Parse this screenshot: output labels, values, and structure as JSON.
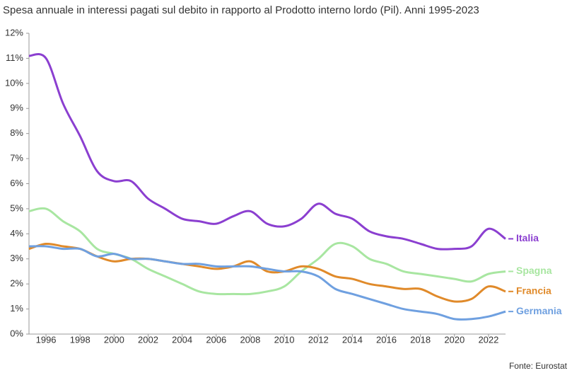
{
  "chart_data": {
    "type": "line",
    "title": "Spesa annuale in interessi pagati sul debito in rapporto al Prodotto interno lordo (Pil). Anni 1995-2023",
    "source": "Fonte: Eurostat",
    "x": [
      1995,
      1996,
      1997,
      1998,
      1999,
      2000,
      2001,
      2002,
      2003,
      2004,
      2005,
      2006,
      2007,
      2008,
      2009,
      2010,
      2011,
      2012,
      2013,
      2014,
      2015,
      2016,
      2017,
      2018,
      2019,
      2020,
      2021,
      2022,
      2023
    ],
    "xlim": [
      1995,
      2023
    ],
    "xticks": [
      1996,
      1998,
      2000,
      2002,
      2004,
      2006,
      2008,
      2010,
      2012,
      2014,
      2016,
      2018,
      2020,
      2022
    ],
    "ylim": [
      0,
      12
    ],
    "yticks": [
      {
        "value": 0,
        "label": "0%"
      },
      {
        "value": 1,
        "label": "1%"
      },
      {
        "value": 2,
        "label": "2%"
      },
      {
        "value": 3,
        "label": "3%"
      },
      {
        "value": 4,
        "label": "4%"
      },
      {
        "value": 5,
        "label": "5%"
      },
      {
        "value": 6,
        "label": "6%"
      },
      {
        "value": 7,
        "label": "7%"
      },
      {
        "value": 8,
        "label": "8%"
      },
      {
        "value": 9,
        "label": "9%"
      },
      {
        "value": 10,
        "label": "10%"
      },
      {
        "value": 11,
        "label": "11%"
      },
      {
        "value": 12,
        "label": "12%"
      }
    ],
    "series": [
      {
        "name": "Italia",
        "color": "#8b3fd0",
        "values": [
          11.1,
          11.0,
          9.2,
          7.9,
          6.5,
          6.1,
          6.1,
          5.4,
          5.0,
          4.6,
          4.5,
          4.4,
          4.7,
          4.9,
          4.4,
          4.3,
          4.6,
          5.2,
          4.8,
          4.6,
          4.1,
          3.9,
          3.8,
          3.6,
          3.4,
          3.4,
          3.5,
          4.2,
          3.8
        ]
      },
      {
        "name": "Spagna",
        "color": "#a8e6a1",
        "values": [
          4.9,
          5.0,
          4.5,
          4.1,
          3.4,
          3.2,
          3.0,
          2.6,
          2.3,
          2.0,
          1.7,
          1.6,
          1.6,
          1.6,
          1.7,
          1.9,
          2.5,
          3.0,
          3.6,
          3.5,
          3.0,
          2.8,
          2.5,
          2.4,
          2.3,
          2.2,
          2.1,
          2.4,
          2.5
        ]
      },
      {
        "name": "Francia",
        "color": "#e08a2a",
        "values": [
          3.4,
          3.6,
          3.5,
          3.4,
          3.1,
          2.9,
          3.0,
          3.0,
          2.9,
          2.8,
          2.7,
          2.6,
          2.7,
          2.9,
          2.5,
          2.5,
          2.7,
          2.6,
          2.3,
          2.2,
          2.0,
          1.9,
          1.8,
          1.8,
          1.5,
          1.3,
          1.4,
          1.9,
          1.7
        ]
      },
      {
        "name": "Germania",
        "color": "#6fa0e0",
        "values": [
          3.5,
          3.5,
          3.4,
          3.4,
          3.1,
          3.2,
          3.0,
          3.0,
          2.9,
          2.8,
          2.8,
          2.7,
          2.7,
          2.7,
          2.6,
          2.5,
          2.5,
          2.3,
          1.8,
          1.6,
          1.4,
          1.2,
          1.0,
          0.9,
          0.8,
          0.6,
          0.6,
          0.7,
          0.9
        ]
      }
    ]
  }
}
